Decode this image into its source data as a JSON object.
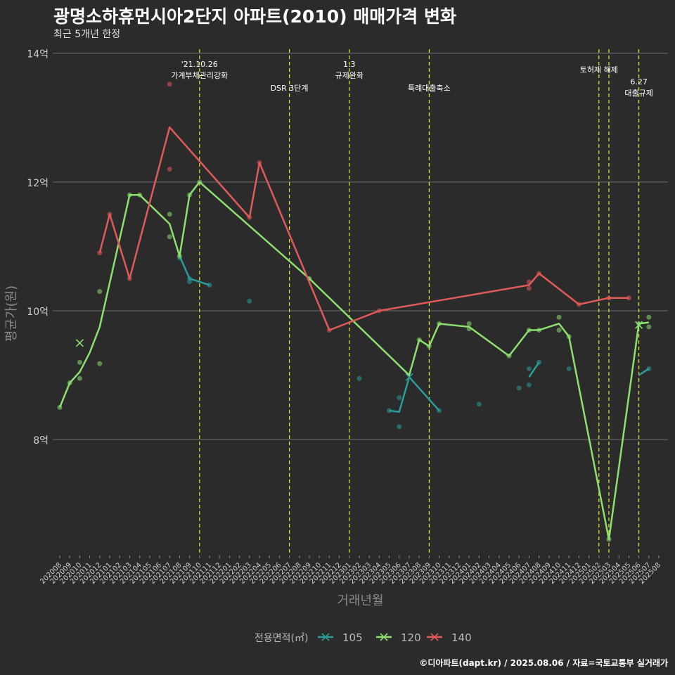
{
  "title": "광명소하휴먼시아2단지 아파트(2010) 매매가격 변화",
  "subtitle": "최근 5개년 한정",
  "caption": "©디아파트(dapt.kr) / 2025.08.06 / 자료=국토교통부 실거래가",
  "chart_data": {
    "type": "line",
    "xlabel": "거래년월",
    "ylabel": "평균가(원)",
    "categories": [
      "202008",
      "202009",
      "202010",
      "202011",
      "202012",
      "202101",
      "202102",
      "202103",
      "202104",
      "202105",
      "202106",
      "202107",
      "202108",
      "202109",
      "202110",
      "202111",
      "202112",
      "202201",
      "202202",
      "202203",
      "202204",
      "202205",
      "202206",
      "202207",
      "202208",
      "202209",
      "202210",
      "202211",
      "202212",
      "202301",
      "202302",
      "202303",
      "202304",
      "202305",
      "202306",
      "202307",
      "202308",
      "202309",
      "202310",
      "202311",
      "202312",
      "202401",
      "202402",
      "202403",
      "202404",
      "202405",
      "202406",
      "202407",
      "202408",
      "202409",
      "202410",
      "202411",
      "202412",
      "202501",
      "202502",
      "202503",
      "202504",
      "202505",
      "202506",
      "202507",
      "202508"
    ],
    "ylim": [
      6.2,
      14.15
    ],
    "yticks": [
      8,
      10,
      12,
      14
    ],
    "ytick_labels": [
      "8억",
      "10억",
      "12억",
      "14억"
    ],
    "grid": true,
    "legend": {
      "title": "전용면적(㎡)",
      "placement": "bottom"
    },
    "series": [
      {
        "name": "105",
        "color": "#2a9d9a",
        "line": [
          [
            "202108",
            10.85
          ],
          [
            "202109",
            10.5
          ],
          [
            "202110",
            10.45
          ],
          [
            "202111",
            10.4
          ],
          null,
          [
            "202305",
            8.45
          ],
          [
            "202306",
            8.43
          ],
          [
            "202307",
            8.97
          ],
          [
            "202310",
            8.45
          ],
          null,
          [
            "202407",
            8.97
          ],
          [
            "202408",
            9.2
          ],
          null,
          [
            "202506",
            9.0
          ],
          [
            "202507",
            9.1
          ]
        ],
        "points": [
          [
            "202108",
            10.82
          ],
          [
            "202109",
            10.45
          ],
          [
            "202109",
            10.5
          ],
          [
            "202111",
            10.4
          ],
          [
            "202203",
            10.15
          ],
          [
            "202302",
            8.95
          ],
          [
            "202305",
            8.45
          ],
          [
            "202306",
            8.65
          ],
          [
            "202306",
            8.2
          ],
          [
            "202310",
            8.45
          ],
          [
            "202402",
            8.55
          ],
          [
            "202406",
            8.8
          ],
          [
            "202407",
            8.85
          ],
          [
            "202407",
            9.1
          ],
          [
            "202408",
            9.2
          ],
          [
            "202411",
            9.1
          ],
          [
            "202507",
            9.1
          ]
        ],
        "cross": [
          [
            "202307",
            8.97
          ]
        ]
      },
      {
        "name": "120",
        "color": "#8de070",
        "line": [
          [
            "202008",
            8.5
          ],
          [
            "202009",
            8.88
          ],
          [
            "202010",
            9.05
          ],
          [
            "202011",
            9.35
          ],
          [
            "202012",
            9.75
          ],
          [
            "202103",
            11.8
          ],
          [
            "202104",
            11.8
          ],
          [
            "202107",
            11.35
          ],
          [
            "202108",
            10.85
          ],
          [
            "202109",
            11.8
          ],
          [
            "202110",
            12.0
          ],
          [
            "202209",
            10.5
          ],
          [
            "202307",
            9.0
          ],
          [
            "202308",
            9.55
          ],
          [
            "202309",
            9.45
          ],
          [
            "202310",
            9.8
          ],
          [
            "202401",
            9.75
          ],
          [
            "202405",
            9.3
          ],
          [
            "202407",
            9.7
          ],
          [
            "202408",
            9.7
          ],
          [
            "202410",
            9.8
          ],
          [
            "202411",
            9.6
          ],
          [
            "202503",
            6.45
          ],
          [
            "202506",
            9.8
          ],
          [
            "202507",
            9.82
          ]
        ],
        "points": [
          [
            "202008",
            8.5
          ],
          [
            "202009",
            8.88
          ],
          [
            "202010",
            8.95
          ],
          [
            "202010",
            9.2
          ],
          [
            "202012",
            10.3
          ],
          [
            "202012",
            9.18
          ],
          [
            "202103",
            11.8
          ],
          [
            "202104",
            11.8
          ],
          [
            "202107",
            11.5
          ],
          [
            "202107",
            11.15
          ],
          [
            "202108",
            10.85
          ],
          [
            "202109",
            11.8
          ],
          [
            "202110",
            12.0
          ],
          [
            "202209",
            10.5
          ],
          [
            "202308",
            9.55
          ],
          [
            "202309",
            9.45
          ],
          [
            "202310",
            9.8
          ],
          [
            "202401",
            9.8
          ],
          [
            "202401",
            9.72
          ],
          [
            "202405",
            9.3
          ],
          [
            "202407",
            9.7
          ],
          [
            "202408",
            9.7
          ],
          [
            "202410",
            9.9
          ],
          [
            "202410",
            9.7
          ],
          [
            "202411",
            9.6
          ],
          [
            "202503",
            6.45
          ],
          [
            "202506",
            9.8
          ],
          [
            "202507",
            9.9
          ],
          [
            "202507",
            9.75
          ]
        ],
        "cross": [
          [
            "202010",
            9.5
          ],
          [
            "202506",
            9.78
          ]
        ]
      },
      {
        "name": "140",
        "color": "#e05a5a",
        "line": [
          [
            "202012",
            10.9
          ],
          [
            "202101",
            11.5
          ],
          [
            "202103",
            10.5
          ],
          [
            "202107",
            12.85
          ],
          [
            "202203",
            11.45
          ],
          [
            "202204",
            12.3
          ],
          [
            "202211",
            9.7
          ],
          [
            "202304",
            10.0
          ],
          [
            "202407",
            10.4
          ],
          [
            "202408",
            10.58
          ],
          [
            "202412",
            10.1
          ],
          [
            "202503",
            10.2
          ],
          [
            "202505",
            10.2
          ]
        ],
        "points": [
          [
            "202012",
            10.9
          ],
          [
            "202101",
            11.5
          ],
          [
            "202103",
            10.5
          ],
          [
            "202107",
            13.52
          ],
          [
            "202107",
            12.2
          ],
          [
            "202203",
            11.45
          ],
          [
            "202204",
            12.3
          ],
          [
            "202211",
            9.7
          ],
          [
            "202304",
            10.0
          ],
          [
            "202407",
            10.45
          ],
          [
            "202407",
            10.35
          ],
          [
            "202408",
            10.58
          ],
          [
            "202412",
            10.1
          ],
          [
            "202503",
            10.2
          ],
          [
            "202505",
            10.2
          ]
        ],
        "cross": []
      }
    ],
    "events": [
      {
        "x": "202110",
        "lines": [
          "'21.10.26",
          "가계부채관리강화"
        ]
      },
      {
        "x": "202207",
        "lines": [
          "DSR 3단계"
        ]
      },
      {
        "x": "202301",
        "lines": [
          "1.3",
          "규제완화"
        ]
      },
      {
        "x": "202309",
        "lines": [
          "특례대출축소"
        ]
      },
      {
        "x": "202502",
        "lines": [
          "토허제 해제"
        ]
      },
      {
        "x": "202503",
        "lines": []
      },
      {
        "x": "202506",
        "lines": [
          "6.27",
          "대출규제"
        ]
      }
    ]
  }
}
